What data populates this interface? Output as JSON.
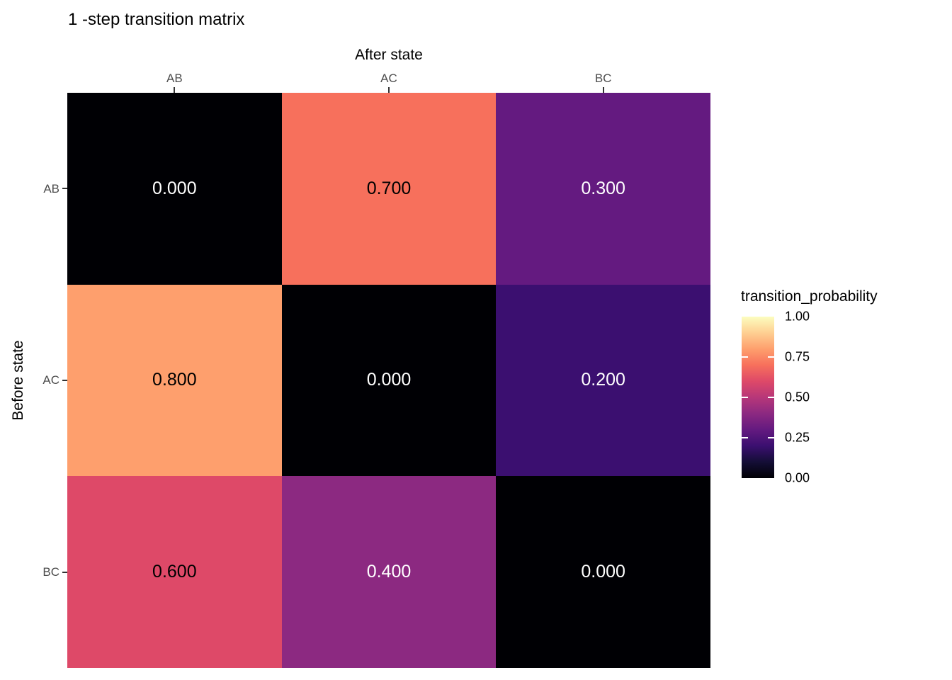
{
  "title": "1 -step transition matrix",
  "x_axis": {
    "title": "After state"
  },
  "y_axis": {
    "title": "Before state"
  },
  "legend": {
    "title": "transition_probability",
    "tick_labels": [
      "1.00",
      "0.75",
      "0.50",
      "0.25",
      "0.00"
    ],
    "gradient_stops_bottom_to_top": [
      "#000004",
      "#140E36",
      "#3B0F70",
      "#641A80",
      "#8C2981",
      "#B73779",
      "#DE4968",
      "#F7705C",
      "#FE9F6D",
      "#FECF92",
      "#FCFDBF"
    ]
  },
  "colors": {
    "background": "#FFFFFF",
    "axis_text": "#4D4D4D",
    "axis_ticks": "#333333",
    "title_text": "#000000",
    "legend_tick": "#FFFFFF"
  },
  "chart_data": {
    "type": "heatmap",
    "title": "1 -step transition matrix",
    "xlabel": "After state",
    "ylabel": "Before state",
    "x_categories": [
      "AB",
      "AC",
      "BC"
    ],
    "y_categories": [
      "AB",
      "AC",
      "BC"
    ],
    "values": [
      [
        0.0,
        0.7,
        0.3
      ],
      [
        0.8,
        0.0,
        0.2
      ],
      [
        0.6,
        0.4,
        0.0
      ]
    ],
    "value_labels": [
      [
        "0.000",
        "0.700",
        "0.300"
      ],
      [
        "0.800",
        "0.000",
        "0.200"
      ],
      [
        "0.600",
        "0.400",
        "0.000"
      ]
    ],
    "cell_colors": [
      [
        "#000004",
        "#F7705C",
        "#641A80"
      ],
      [
        "#FE9F6D",
        "#000004",
        "#3B0F70"
      ],
      [
        "#DE4968",
        "#8C2981",
        "#000004"
      ]
    ],
    "label_colors": [
      [
        "#FFFFFF",
        "#000000",
        "#FFFFFF"
      ],
      [
        "#000000",
        "#FFFFFF",
        "#FFFFFF"
      ],
      [
        "#000000",
        "#FFFFFF",
        "#FFFFFF"
      ]
    ],
    "colormap": "magma",
    "zlim": [
      0,
      1
    ],
    "grid": false,
    "legend_position": "right",
    "legend_title": "transition_probability",
    "legend_ticks": [
      1.0,
      0.75,
      0.5,
      0.25,
      0.0
    ]
  }
}
